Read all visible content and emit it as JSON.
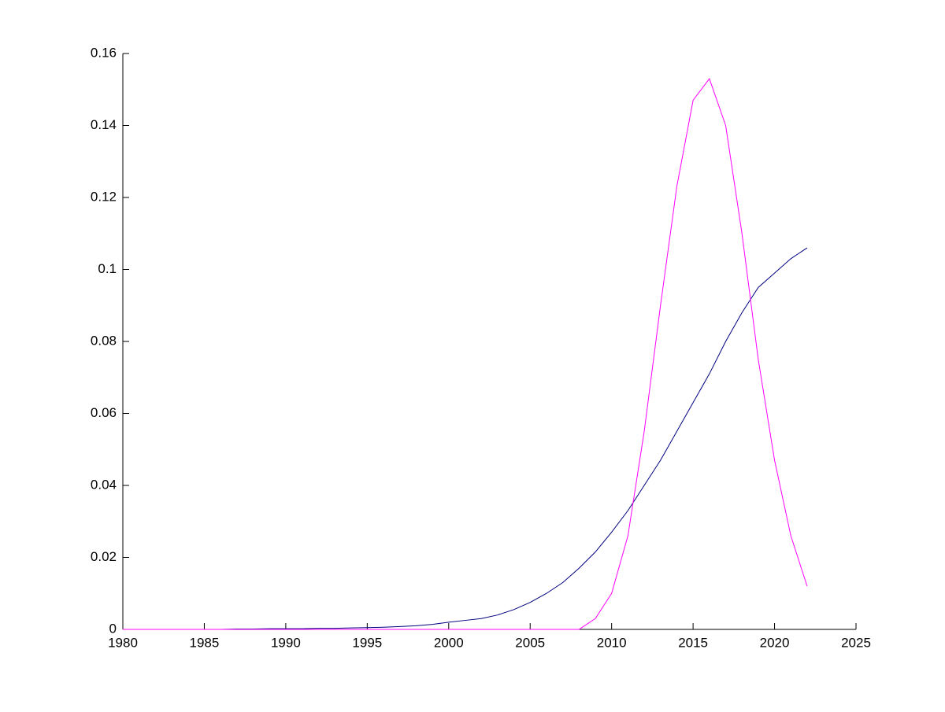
{
  "chart_data": {
    "type": "line",
    "x": [
      1980,
      1981,
      1982,
      1983,
      1984,
      1985,
      1986,
      1987,
      1988,
      1989,
      1990,
      1991,
      1992,
      1993,
      1994,
      1995,
      1996,
      1997,
      1998,
      1999,
      2000,
      2001,
      2002,
      2003,
      2004,
      2005,
      2006,
      2007,
      2008,
      2009,
      2010,
      2011,
      2012,
      2013,
      2014,
      2015,
      2016,
      2017,
      2018,
      2019,
      2020,
      2021,
      2022
    ],
    "series": [
      {
        "color": "#000080",
        "values": [
          0,
          0,
          0,
          0,
          0,
          0,
          0,
          0.0001,
          0.0001,
          0.0002,
          0.0002,
          0.0002,
          0.0003,
          0.0003,
          0.0004,
          0.0005,
          0.0006,
          0.0008,
          0.001,
          0.0014,
          0.002,
          0.0025,
          0.003,
          0.004,
          0.0055,
          0.0075,
          0.01,
          0.013,
          0.017,
          0.0215,
          0.027,
          0.033,
          0.04,
          0.047,
          0.055,
          0.063,
          0.071,
          0.08,
          0.088,
          0.095,
          0.099,
          0.103,
          0.106
        ]
      },
      {
        "color": "#ff00ff",
        "values": [
          0,
          0,
          0,
          0,
          0,
          0,
          0,
          0,
          0,
          0,
          0,
          0,
          0,
          0,
          0,
          0,
          0,
          0,
          0,
          0,
          0,
          0,
          0,
          0,
          0,
          0,
          0,
          0,
          0,
          0.003,
          0.01,
          0.026,
          0.055,
          0.09,
          0.123,
          0.147,
          0.153,
          0.14,
          0.11,
          0.075,
          0.047,
          0.026,
          0.012
        ]
      }
    ],
    "xlim": [
      1980,
      2025
    ],
    "xticks": [
      1980,
      1985,
      1990,
      1995,
      2000,
      2005,
      2010,
      2015,
      2020,
      2025
    ],
    "ylim": [
      0,
      0.16
    ],
    "yticks": [
      0,
      0.02,
      0.04,
      0.06,
      0.08,
      0.1,
      0.12,
      0.14,
      0.16
    ],
    "grid": false
  }
}
